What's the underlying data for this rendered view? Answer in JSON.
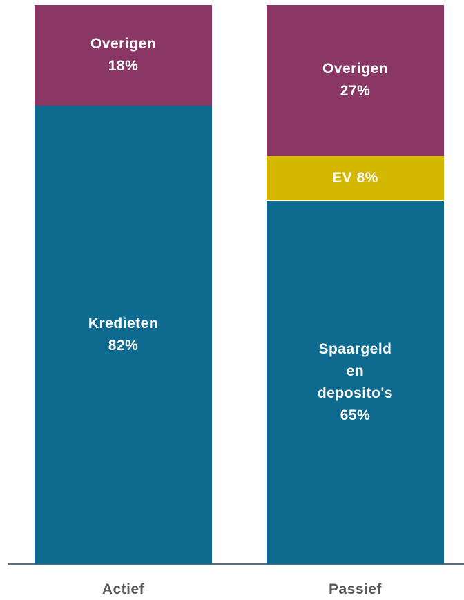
{
  "chart_data": {
    "type": "stacked-bar",
    "categories": [
      "Actief",
      "Passief"
    ],
    "ylim": [
      0,
      100
    ],
    "bars": [
      {
        "segments": [
          {
            "name": "Kredieten",
            "values": 82,
            "value_labels": "82%",
            "color": "#0e6a8e"
          },
          {
            "name": "Overigen",
            "values": 18,
            "value_labels": "18%",
            "color": "#8b3766"
          }
        ]
      },
      {
        "segments": [
          {
            "name": "Spaargeld en deposito's",
            "values": 65,
            "value_labels": "65%",
            "color": "#0e6a8e"
          },
          {
            "name": "EV",
            "values": 8,
            "value_labels": "8%",
            "color": "#d4b800"
          },
          {
            "name": "Overigen",
            "values": 27,
            "value_labels": "27%",
            "color": "#8b3766"
          }
        ]
      }
    ]
  }
}
